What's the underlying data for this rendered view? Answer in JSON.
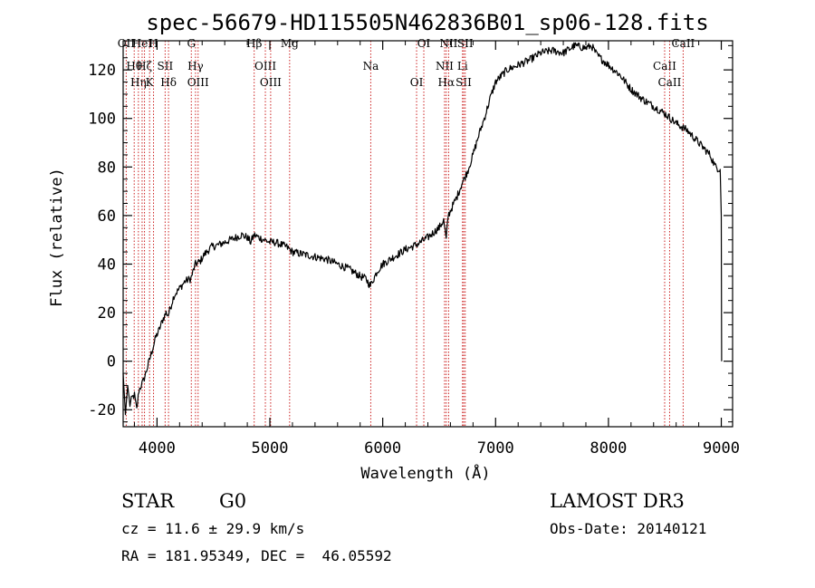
{
  "chart_data": {
    "type": "line",
    "title": "spec-56679-HD115505N462836B01_sp06-128.fits",
    "xlabel": "Wavelength (Å)",
    "ylabel": "Flux (relative)",
    "xlim": [
      3700,
      9100
    ],
    "ylim": [
      -27,
      132
    ],
    "xticks": [
      4000,
      5000,
      6000,
      7000,
      8000,
      9000
    ],
    "yticks": [
      -20,
      0,
      20,
      40,
      60,
      80,
      100,
      120
    ],
    "series": [
      {
        "name": "flux",
        "x": [
          3700,
          3720,
          3740,
          3760,
          3780,
          3800,
          3820,
          3840,
          3860,
          3880,
          3900,
          3930,
          3960,
          3990,
          4020,
          4050,
          4080,
          4100,
          4150,
          4200,
          4250,
          4300,
          4340,
          4380,
          4420,
          4480,
          4550,
          4650,
          4750,
          4800,
          4830,
          4860,
          4900,
          4950,
          5000,
          5050,
          5100,
          5150,
          5200,
          5300,
          5400,
          5500,
          5600,
          5700,
          5800,
          5850,
          5890,
          5910,
          5950,
          6000,
          6100,
          6200,
          6300,
          6400,
          6500,
          6540,
          6563,
          6580,
          6620,
          6660,
          6700,
          6750,
          6800,
          6850,
          6900,
          6950,
          7000,
          7100,
          7200,
          7300,
          7400,
          7500,
          7600,
          7700,
          7800,
          7850,
          7900,
          8000,
          8100,
          8200,
          8300,
          8400,
          8500,
          8550,
          8600,
          8700,
          8800,
          8900,
          8950,
          8990,
          9000,
          9003
        ],
        "y": [
          -5,
          -22,
          -10,
          -18,
          -15,
          -14,
          -20,
          -12,
          -10,
          -8,
          -5,
          0,
          5,
          10,
          13,
          17,
          20,
          19,
          27,
          30,
          33,
          34,
          40,
          41,
          44,
          47,
          48,
          50,
          52,
          51,
          49,
          52,
          51,
          50,
          49,
          49,
          48,
          47,
          45,
          44,
          43,
          42,
          40,
          38,
          35,
          34,
          31,
          33,
          37,
          40,
          43,
          46,
          48,
          51,
          55,
          58,
          50,
          60,
          64,
          68,
          73,
          78,
          85,
          93,
          100,
          108,
          115,
          120,
          122,
          124,
          127,
          128,
          127,
          130,
          129,
          130,
          126,
          122,
          118,
          112,
          108,
          105,
          102,
          100,
          98,
          95,
          90,
          85,
          80,
          79,
          60,
          0
        ]
      }
    ],
    "line_markers": [
      {
        "wl": 3727,
        "label": "OII"
      },
      {
        "wl": 3798,
        "label": "Hθ"
      },
      {
        "wl": 3835,
        "label": "Hη"
      },
      {
        "wl": 3868,
        "label": "HeI"
      },
      {
        "wl": 3889,
        "label": "Hζ"
      },
      {
        "wl": 3934,
        "label": "K"
      },
      {
        "wl": 3969,
        "label": "H"
      },
      {
        "wl": 4072,
        "label": "SII"
      },
      {
        "wl": 4102,
        "label": "Hδ"
      },
      {
        "wl": 4304,
        "label": "G"
      },
      {
        "wl": 4341,
        "label": "Hγ"
      },
      {
        "wl": 4364,
        "label": "OIII"
      },
      {
        "wl": 4861,
        "label": "Hβ"
      },
      {
        "wl": 4960,
        "label": "OIII"
      },
      {
        "wl": 5007,
        "label": "OIII"
      },
      {
        "wl": 5175,
        "label": "Mg"
      },
      {
        "wl": 5894,
        "label": "Na"
      },
      {
        "wl": 6300,
        "label": "OI"
      },
      {
        "wl": 6364,
        "label": "OI"
      },
      {
        "wl": 6548,
        "label": "NII"
      },
      {
        "wl": 6563,
        "label": "Hα"
      },
      {
        "wl": 6584,
        "label": "NII"
      },
      {
        "wl": 6707,
        "label": "Li"
      },
      {
        "wl": 6717,
        "label": "SII"
      },
      {
        "wl": 6731,
        "label": "SII"
      },
      {
        "wl": 8498,
        "label": "CaII"
      },
      {
        "wl": 8542,
        "label": "CaII"
      },
      {
        "wl": 8662,
        "label": "CaII"
      }
    ]
  },
  "info": {
    "object_class": "STAR",
    "subclass": "G0",
    "survey": "LAMOST DR3",
    "cz": "cz = 11.6 ± 29.9 km/s",
    "obs_date": "Obs-Date: 20140121",
    "coords": "RA = 181.95349, DEC =  46.05592"
  }
}
